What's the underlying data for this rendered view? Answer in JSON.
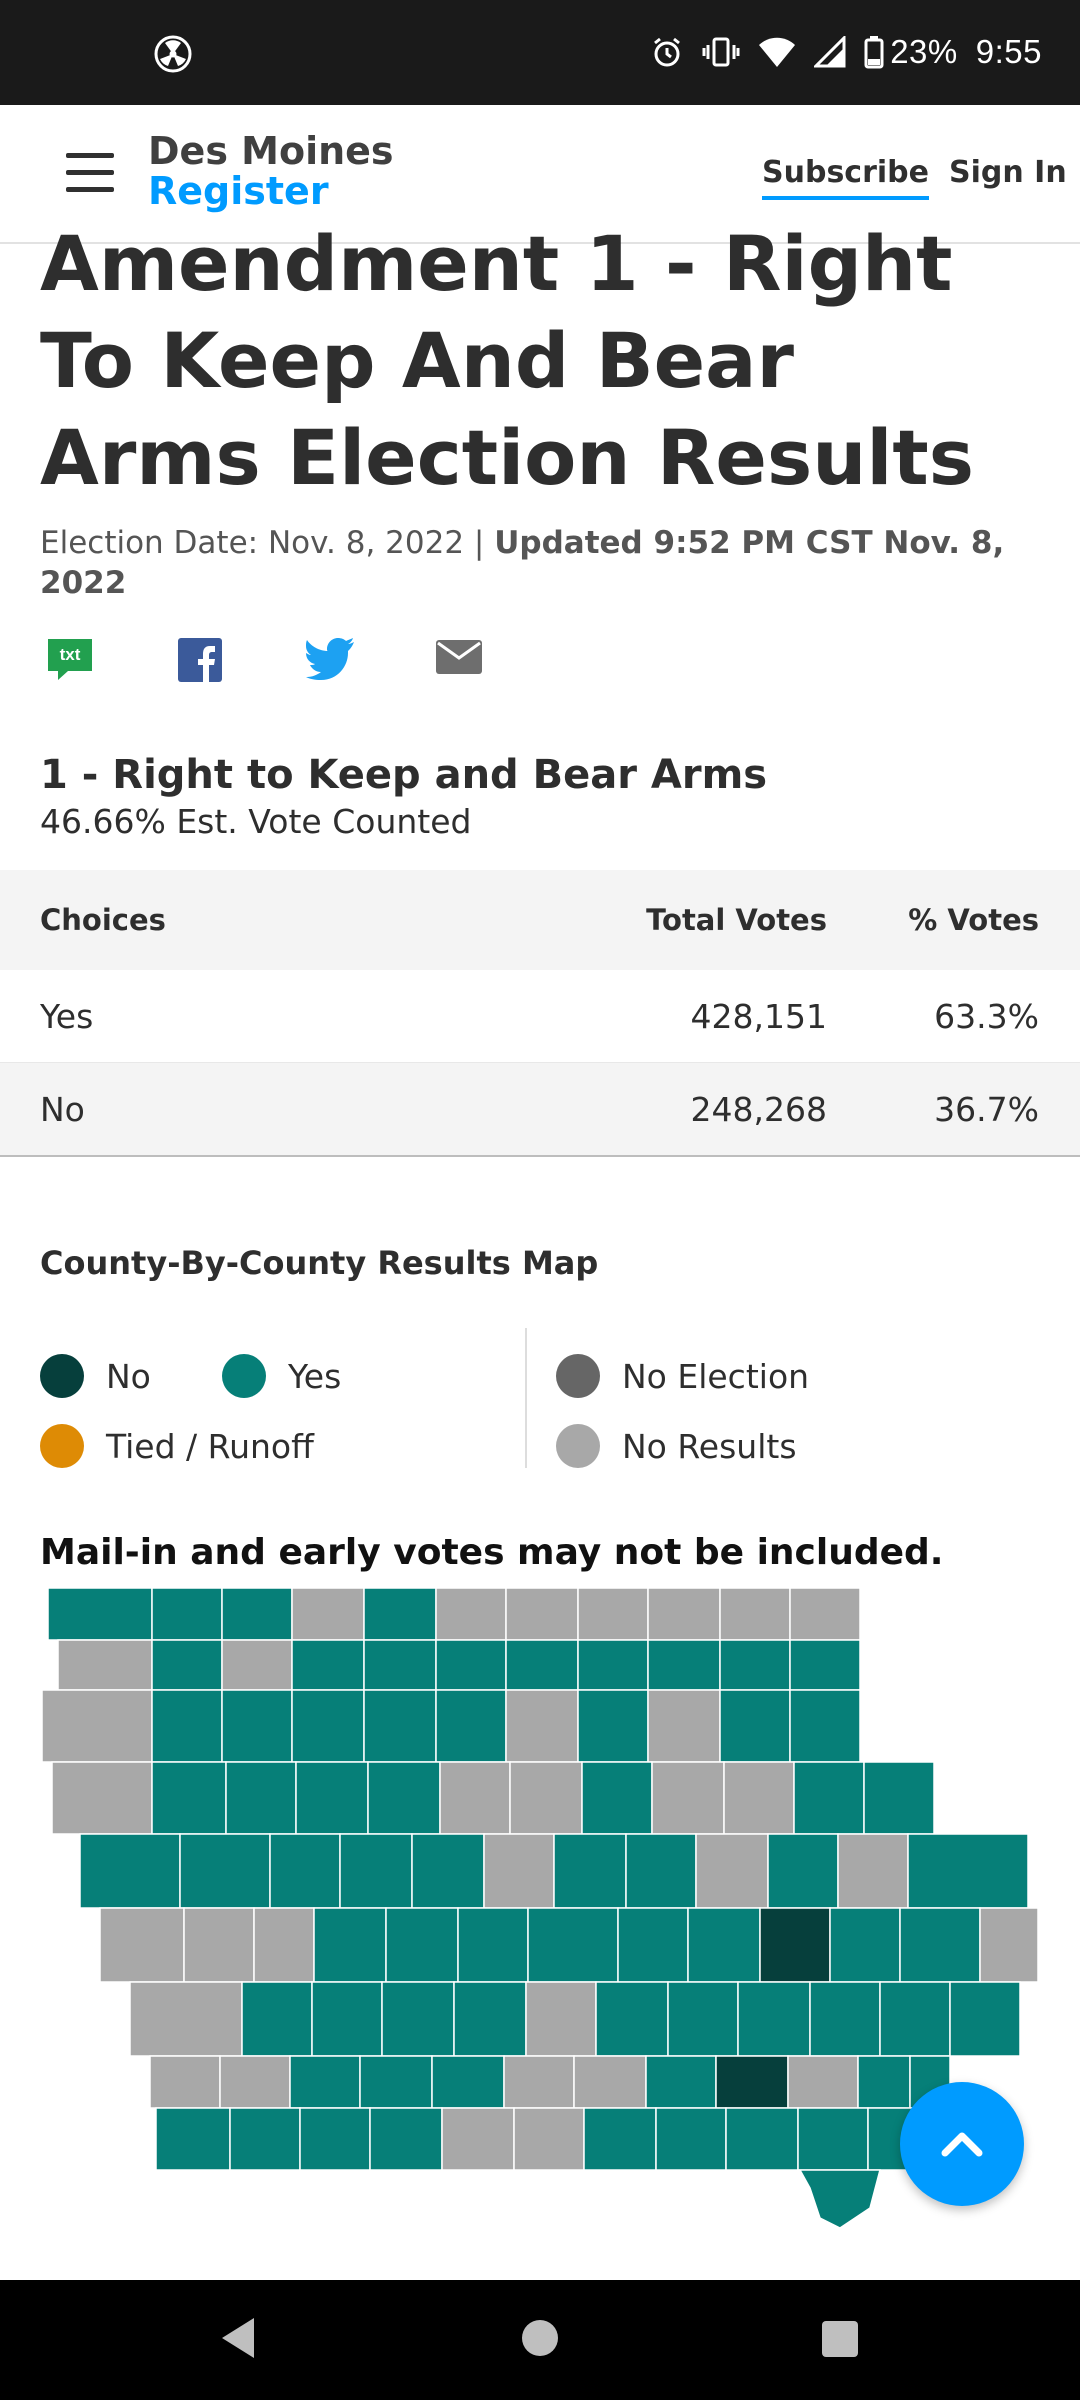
{
  "status_bar": {
    "battery": "23%",
    "time": "9:55",
    "icons": [
      "radiation-icon",
      "alarm-icon",
      "vibrate-icon",
      "wifi-icon",
      "signal-icon",
      "battery-icon"
    ]
  },
  "header": {
    "logo_line1": "Des Moines",
    "logo_line2": "Register",
    "subscribe": "Subscribe",
    "sign_in": "Sign In",
    "accent": "#009bff"
  },
  "article": {
    "title": "Amendment 1 - Right To Keep And Bear Arms Election Results",
    "election_date": "Election Date: Nov. 8, 2022 | ",
    "updated": "Updated 9:52 PM CST Nov. 8, 2022"
  },
  "share": {
    "sms_label": "txt",
    "icons": [
      "sms-icon",
      "facebook-icon",
      "twitter-icon",
      "email-icon"
    ]
  },
  "race": {
    "title": "1 - Right to Keep and Bear Arms",
    "counted": "46.66% Est. Vote Counted",
    "columns": [
      "Choices",
      "Total Votes",
      "% Votes"
    ],
    "rows": [
      {
        "choice": "Yes",
        "votes": "428,151",
        "pct": "63.3%"
      },
      {
        "choice": "No",
        "votes": "248,268",
        "pct": "36.7%"
      }
    ]
  },
  "map": {
    "title": "County-By-County Results Map",
    "legend": {
      "no": "No",
      "yes": "Yes",
      "tied": "Tied / Runoff",
      "no_election": "No Election",
      "no_results": "No Results"
    },
    "colors": {
      "no": "#063f3c",
      "yes": "#067f78",
      "tied": "#de8b05",
      "no_election": "#666666",
      "no_results": "#a8a8a8"
    },
    "note": "Mail-in and early votes may not be included."
  }
}
